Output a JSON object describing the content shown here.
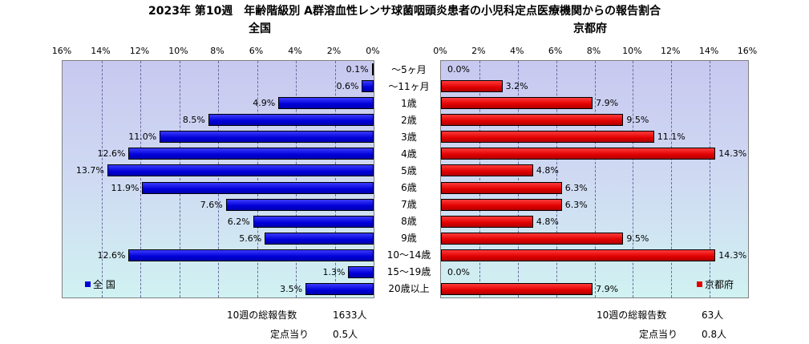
{
  "title": "2023年 第10週　年齢階級別 A群溶血性レンサ球菌咽頭炎患者の小児科定点医療機関からの報告割合",
  "chart_data": [
    {
      "type": "bar",
      "orientation": "horizontal",
      "direction": "right-to-left",
      "subtitle": "全国",
      "legend": "全 国",
      "legend_position": "bottom-left",
      "color": "#0000d8",
      "xlim": [
        0,
        16
      ],
      "xticks": [
        "16%",
        "14%",
        "12%",
        "10%",
        "8%",
        "6%",
        "4%",
        "2%",
        "0%"
      ],
      "categories": [
        "～5ヶ月",
        "～11ヶ月",
        "1歳",
        "2歳",
        "3歳",
        "4歳",
        "5歳",
        "6歳",
        "7歳",
        "8歳",
        "9歳",
        "10～14歳",
        "15～19歳",
        "20歳以上"
      ],
      "values": [
        0.1,
        0.6,
        4.9,
        8.5,
        11.0,
        12.6,
        13.7,
        11.9,
        7.6,
        6.2,
        5.6,
        12.6,
        1.3,
        3.5
      ],
      "labels": [
        "0.1%",
        "0.6%",
        "4.9%",
        "8.5%",
        "11.0%",
        "12.6%",
        "13.7%",
        "11.9%",
        "7.6%",
        "6.2%",
        "5.6%",
        "12.6%",
        "1.3%",
        "3.5%"
      ],
      "grid": true
    },
    {
      "type": "bar",
      "orientation": "horizontal",
      "direction": "left-to-right",
      "subtitle": "京都府",
      "legend": "京都府",
      "legend_position": "bottom-right",
      "color": "#e00000",
      "xlim": [
        0,
        16
      ],
      "xticks": [
        "0%",
        "2%",
        "4%",
        "6%",
        "8%",
        "10%",
        "12%",
        "14%",
        "16%"
      ],
      "categories": [
        "～5ヶ月",
        "～11ヶ月",
        "1歳",
        "2歳",
        "3歳",
        "4歳",
        "5歳",
        "6歳",
        "7歳",
        "8歳",
        "9歳",
        "10～14歳",
        "15～19歳",
        "20歳以上"
      ],
      "values": [
        0.0,
        3.2,
        7.9,
        9.5,
        11.1,
        14.3,
        4.8,
        6.3,
        6.3,
        4.8,
        9.5,
        14.3,
        0.0,
        7.9
      ],
      "labels": [
        "0.0%",
        "3.2%",
        "7.9%",
        "9.5%",
        "11.1%",
        "14.3%",
        "4.8%",
        "6.3%",
        "6.3%",
        "4.8%",
        "9.5%",
        "14.3%",
        "0.0%",
        "7.9%"
      ],
      "grid": true
    }
  ],
  "footer": {
    "national": {
      "total_label": "10週の総報告数",
      "total_value": "1633人",
      "per_site_label": "定点当り",
      "per_site_value": "0.5人"
    },
    "kyoto": {
      "total_label": "10週の総報告数",
      "total_value": "63人",
      "per_site_label": "定点当り",
      "per_site_value": "0.8人"
    }
  }
}
